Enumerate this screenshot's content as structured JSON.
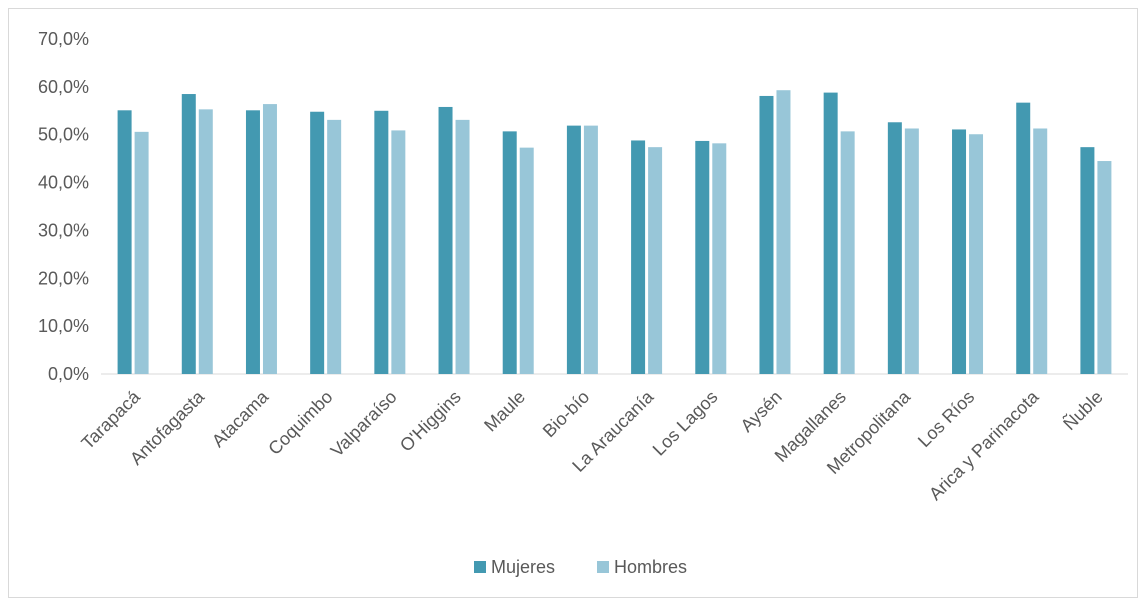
{
  "chart_data": {
    "type": "bar",
    "title": "",
    "xlabel": "",
    "ylabel": "",
    "ylim": [
      0,
      70
    ],
    "y_ticks": [
      "0,0%",
      "10,0%",
      "20,0%",
      "30,0%",
      "40,0%",
      "50,0%",
      "60,0%",
      "70,0%"
    ],
    "y_tick_values": [
      0,
      10,
      20,
      30,
      40,
      50,
      60,
      70
    ],
    "grid": false,
    "legend_position": "bottom",
    "categories": [
      "Tarapacá",
      "Antofagasta",
      "Atacama",
      "Coquimbo",
      "Valparaíso",
      "O'Higgins",
      "Maule",
      "Bio-bío",
      "La Araucanía",
      "Los Lagos",
      "Aysén",
      "Magallanes",
      "Metropolitana",
      "Los Ríos",
      "Arica y Parinacota",
      "Ñuble"
    ],
    "series": [
      {
        "name": "Mujeres",
        "color": "#4399b1",
        "values": [
          55.1,
          58.5,
          55.1,
          54.8,
          55.0,
          55.8,
          50.7,
          51.9,
          48.8,
          48.7,
          58.1,
          58.8,
          52.6,
          51.1,
          56.7,
          47.4
        ]
      },
      {
        "name": "Hombres",
        "color": "#98c6d8",
        "values": [
          50.6,
          55.3,
          56.4,
          53.1,
          50.9,
          53.1,
          47.3,
          51.9,
          47.4,
          48.2,
          59.3,
          50.7,
          51.3,
          50.1,
          51.3,
          44.5
        ]
      }
    ]
  }
}
